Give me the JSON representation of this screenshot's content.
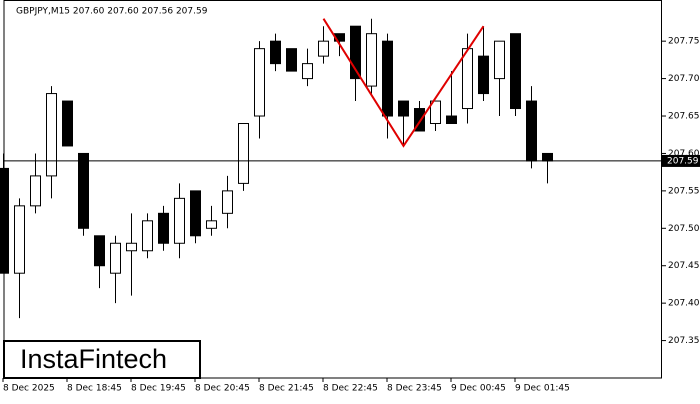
{
  "chart_data": {
    "type": "candlestick",
    "title": "GBPJPY,M15  207.60 207.60 207.56 207.59",
    "watermark": "InstaFintech",
    "categories": [
      "8 Dec 2025",
      null,
      null,
      null,
      "8 Dec 18:45",
      null,
      null,
      null,
      "8 Dec 19:45",
      null,
      null,
      null,
      "8 Dec 20:45",
      null,
      null,
      null,
      "8 Dec 21:45",
      null,
      null,
      null,
      "8 Dec 22:45",
      null,
      null,
      null,
      "8 Dec 23:45",
      null,
      null,
      null,
      "9 Dec 00:45",
      null,
      null,
      null,
      "9 Dec 01:45",
      null,
      null
    ],
    "open": [
      207.58,
      207.44,
      207.53,
      207.57,
      207.67,
      207.6,
      207.49,
      207.44,
      207.47,
      207.47,
      207.52,
      207.48,
      207.55,
      207.5,
      207.52,
      207.56,
      207.65,
      207.75,
      207.74,
      207.7,
      207.73,
      207.76,
      207.77,
      207.69,
      207.75,
      207.67,
      207.66,
      207.64,
      207.65,
      207.66,
      207.73,
      207.7,
      207.76,
      207.67,
      207.6
    ],
    "high": [
      207.6,
      207.54,
      207.6,
      207.69,
      207.67,
      207.6,
      207.49,
      207.49,
      207.52,
      207.52,
      207.53,
      207.56,
      207.55,
      207.53,
      207.57,
      207.64,
      207.75,
      207.76,
      207.74,
      207.74,
      207.77,
      207.76,
      207.77,
      207.78,
      207.76,
      207.67,
      207.67,
      207.67,
      207.71,
      207.76,
      207.77,
      207.75,
      207.76,
      207.69,
      207.6
    ],
    "low": [
      207.44,
      207.38,
      207.52,
      207.54,
      207.61,
      207.49,
      207.42,
      207.4,
      207.41,
      207.46,
      207.47,
      207.46,
      207.48,
      207.49,
      207.5,
      207.55,
      207.62,
      207.71,
      207.71,
      207.69,
      207.72,
      207.73,
      207.67,
      207.68,
      207.62,
      207.61,
      207.63,
      207.63,
      207.64,
      207.64,
      207.67,
      207.65,
      207.65,
      207.58,
      207.56
    ],
    "close": [
      207.44,
      207.53,
      207.57,
      207.68,
      207.61,
      207.5,
      207.45,
      207.48,
      207.48,
      207.51,
      207.48,
      207.54,
      207.49,
      207.51,
      207.55,
      207.64,
      207.74,
      207.72,
      207.71,
      207.72,
      207.75,
      207.75,
      207.7,
      207.76,
      207.65,
      207.65,
      207.63,
      207.67,
      207.64,
      207.74,
      207.68,
      207.75,
      207.66,
      207.59,
      207.59
    ],
    "up_color": "#ffffff",
    "down_color": "#000000",
    "ylim": [
      207.3,
      207.805
    ],
    "yticks": [
      207.35,
      {
        "value": 207.4,
        "label": "207.40"
      },
      207.45,
      {
        "value": 207.5,
        "label": "207.50"
      },
      207.55,
      {
        "value": 207.6,
        "label": "207.60"
      },
      207.65,
      {
        "value": 207.7,
        "label": "207.70"
      },
      207.75
    ],
    "current_price": 207.59,
    "pattern": {
      "color": "#e00000",
      "points": [
        {
          "index": 20,
          "value": 207.78
        },
        {
          "index": 25,
          "value": 207.61
        },
        {
          "index": 30,
          "value": 207.77
        }
      ]
    }
  }
}
